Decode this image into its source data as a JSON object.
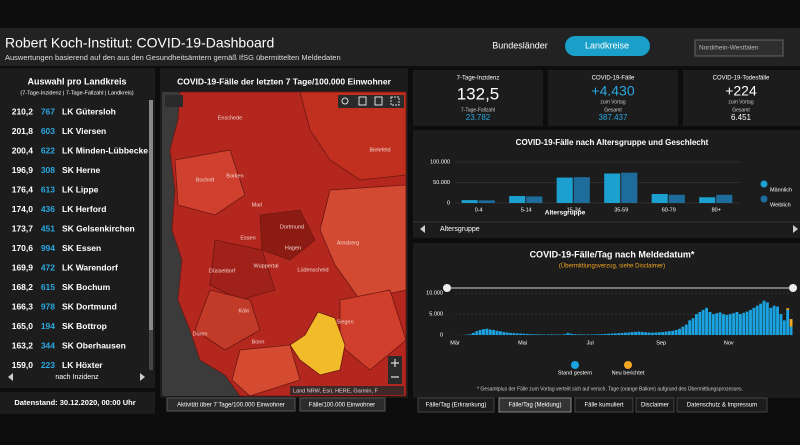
{
  "header": {
    "title": "Robert Koch-Institut: COVID-19-Dashboard",
    "subtitle": "Auswertungen basierend auf den aus den Gesundheitsämtern gemäß IfSG übermittelten Meldedaten",
    "nav": [
      "Bundesländer",
      "Landkreise"
    ],
    "dropdown": "Nordrhein-Westfalen"
  },
  "district_list": {
    "title": "Auswahl pro Landkreis",
    "legend": "(7-Tage-Inzidenz | 7-Tage-Fallzahl | Landkreis)",
    "rows": [
      [
        "210,2",
        "767",
        "LK Gütersloh"
      ],
      [
        "201,8",
        "603",
        "LK Viersen"
      ],
      [
        "200,4",
        "622",
        "LK Minden-Lübbecke"
      ],
      [
        "196,9",
        "308",
        "SK Herne"
      ],
      [
        "176,4",
        "613",
        "LK Lippe"
      ],
      [
        "174,0",
        "436",
        "LK Herford"
      ],
      [
        "173,7",
        "451",
        "SK Gelsenkirchen"
      ],
      [
        "170,6",
        "994",
        "SK Essen"
      ],
      [
        "169,9",
        "472",
        "LK Warendorf"
      ],
      [
        "168,2",
        "615",
        "SK Bochum"
      ],
      [
        "166,3",
        "978",
        "SK Dortmund"
      ],
      [
        "165,0",
        "194",
        "SK Bottrop"
      ],
      [
        "163,2",
        "344",
        "SK Oberhausen"
      ],
      [
        "159,0",
        "223",
        "LK Höxter"
      ]
    ],
    "sort": "nach Inzidenz",
    "data_status": "Datenstand: 30.12.2020, 00:00 Uhr"
  },
  "map": {
    "title": "COVID-19-Fälle der letzten 7 Tage/100.000 Einwohner",
    "places": [
      "Enschede",
      "Bielefeld",
      "Bocholt",
      "Borken",
      "Marl",
      "Dortmund",
      "Essen",
      "Hagen",
      "Wuppertal",
      "Düsseldorf",
      "Lüdenscheid",
      "Arnsberg",
      "Köln",
      "Düren",
      "Bonn",
      "Siegen"
    ],
    "attribution": "Land NRW, Esri, HERE, Garmin, F",
    "buttons": [
      "Aktivität über 7 Tage/100.000 Einwohner",
      "Fälle/100.000 Einwohner"
    ]
  },
  "stats": [
    {
      "label": "7-Tage-Inzidenz",
      "value": "132,5",
      "sub_label": "7-Tage-Fallzahl",
      "sub_value": "23.782"
    },
    {
      "label": "COVID-19-Fälle",
      "value": "+4.430",
      "note": "zum Vortag",
      "sub_label": "Gesamt",
      "sub_value": "387.437"
    },
    {
      "label": "COVID-19-Todesfälle",
      "value": "+224",
      "note": "zum Vortag",
      "sub_label": "Gesamt",
      "sub_value": "6.451"
    }
  ],
  "age_chart": {
    "type": "bar",
    "title": "COVID-19-Fälle nach Altersgruppe und Geschlecht",
    "x_label": "Altersgruppe",
    "footer": "Altersgruppe",
    "categories": [
      "0-4",
      "5-14",
      "15-34",
      "35-59",
      "60-79",
      "80+"
    ],
    "series": [
      {
        "name": "Männlich",
        "color": "#1ba0cf",
        "values": [
          7000,
          17000,
          62000,
          72000,
          22000,
          14000
        ]
      },
      {
        "name": "Weiblich",
        "color": "#1d6c9c",
        "values": [
          6500,
          16000,
          63000,
          74000,
          20000,
          20000
        ]
      }
    ],
    "ylim": [
      0,
      100000
    ],
    "yticks": [
      0,
      {
        "value": 50000,
        "label": "50.000"
      },
      {
        "value": 100000,
        "label": "100.000"
      }
    ]
  },
  "daily_chart": {
    "type": "stacked_bar",
    "title": "COVID-19-Fälle/Tag nach Meldedatum*",
    "subtitle": "(Übermittlungsverzug, siehe Disclaimer)",
    "footnote": "* Gesamtplus der Fälle zum Vortag verteilt sich auf versch. Tage (orange Balken) aufgrund des Übermittlungsprozesses.",
    "series": [
      {
        "name": "Stand gestern",
        "color": "#1aa3e0",
        "values": [
          0,
          5,
          20,
          80,
          200,
          500,
          900,
          1200,
          1400,
          1500,
          1300,
          1200,
          1000,
          900,
          700,
          600,
          500,
          450,
          400,
          350,
          300,
          250,
          200,
          180,
          150,
          150,
          120,
          120,
          150,
          130,
          120,
          100,
          200,
          500,
          300,
          200,
          150,
          150,
          130,
          120,
          130,
          150,
          180,
          200,
          250,
          300,
          350,
          400,
          450,
          500,
          550,
          600,
          700,
          750,
          800,
          700,
          650,
          600,
          550,
          600,
          650,
          700,
          800,
          900,
          1000,
          1200,
          1500,
          2000,
          2500,
          3500,
          4000,
          5000,
          5500,
          6000,
          6500,
          5500,
          5000,
          5200,
          5400,
          5000,
          4800,
          5000,
          5200,
          5500,
          5000,
          5300,
          5600,
          6000,
          6500,
          7000,
          7500,
          8200,
          7800,
          6500,
          7000,
          6800,
          5000,
          3500,
          6000,
          2000
        ]
      },
      {
        "name": "Neu berichtet",
        "color": "#f5a623",
        "values": [
          null,
          null,
          null,
          null,
          null,
          null,
          null,
          null,
          null,
          null,
          null,
          null,
          null,
          null,
          null,
          null,
          null,
          null,
          null,
          null,
          null,
          null,
          null,
          null,
          null,
          null,
          null,
          null,
          null,
          null,
          null,
          null,
          null,
          null,
          null,
          null,
          null,
          null,
          null,
          null,
          null,
          null,
          null,
          null,
          null,
          null,
          null,
          null,
          null,
          null,
          null,
          null,
          null,
          null,
          null,
          null,
          null,
          null,
          null,
          null,
          null,
          null,
          null,
          null,
          null,
          null,
          null,
          null,
          null,
          null,
          null,
          null,
          null,
          null,
          null,
          null,
          null,
          null,
          null,
          null,
          null,
          null,
          null,
          null,
          null,
          null,
          null,
          null,
          null,
          null,
          null,
          null,
          null,
          null,
          null,
          null,
          null,
          null,
          400,
          1800
        ]
      }
    ],
    "xlim": [
      0,
      100
    ],
    "xticks": [
      {
        "value": 0,
        "label": "Mär"
      },
      {
        "value": 20,
        "label": "Mai"
      },
      {
        "value": 40,
        "label": "Jul"
      },
      {
        "value": 61,
        "label": "Sep"
      },
      {
        "value": 81,
        "label": "Nov"
      }
    ],
    "ylim": [
      0,
      11000
    ],
    "yticks": [
      0,
      {
        "value": 5000,
        "label": "5.000"
      },
      {
        "value": 10000,
        "label": "10.000"
      }
    ]
  },
  "tabs": [
    "Fälle/Tag (Erkrankung)",
    "Fälle/Tag (Meldung)",
    "Fälle kumuliert",
    "Disclaimer",
    "Datenschutz & Impressum"
  ]
}
